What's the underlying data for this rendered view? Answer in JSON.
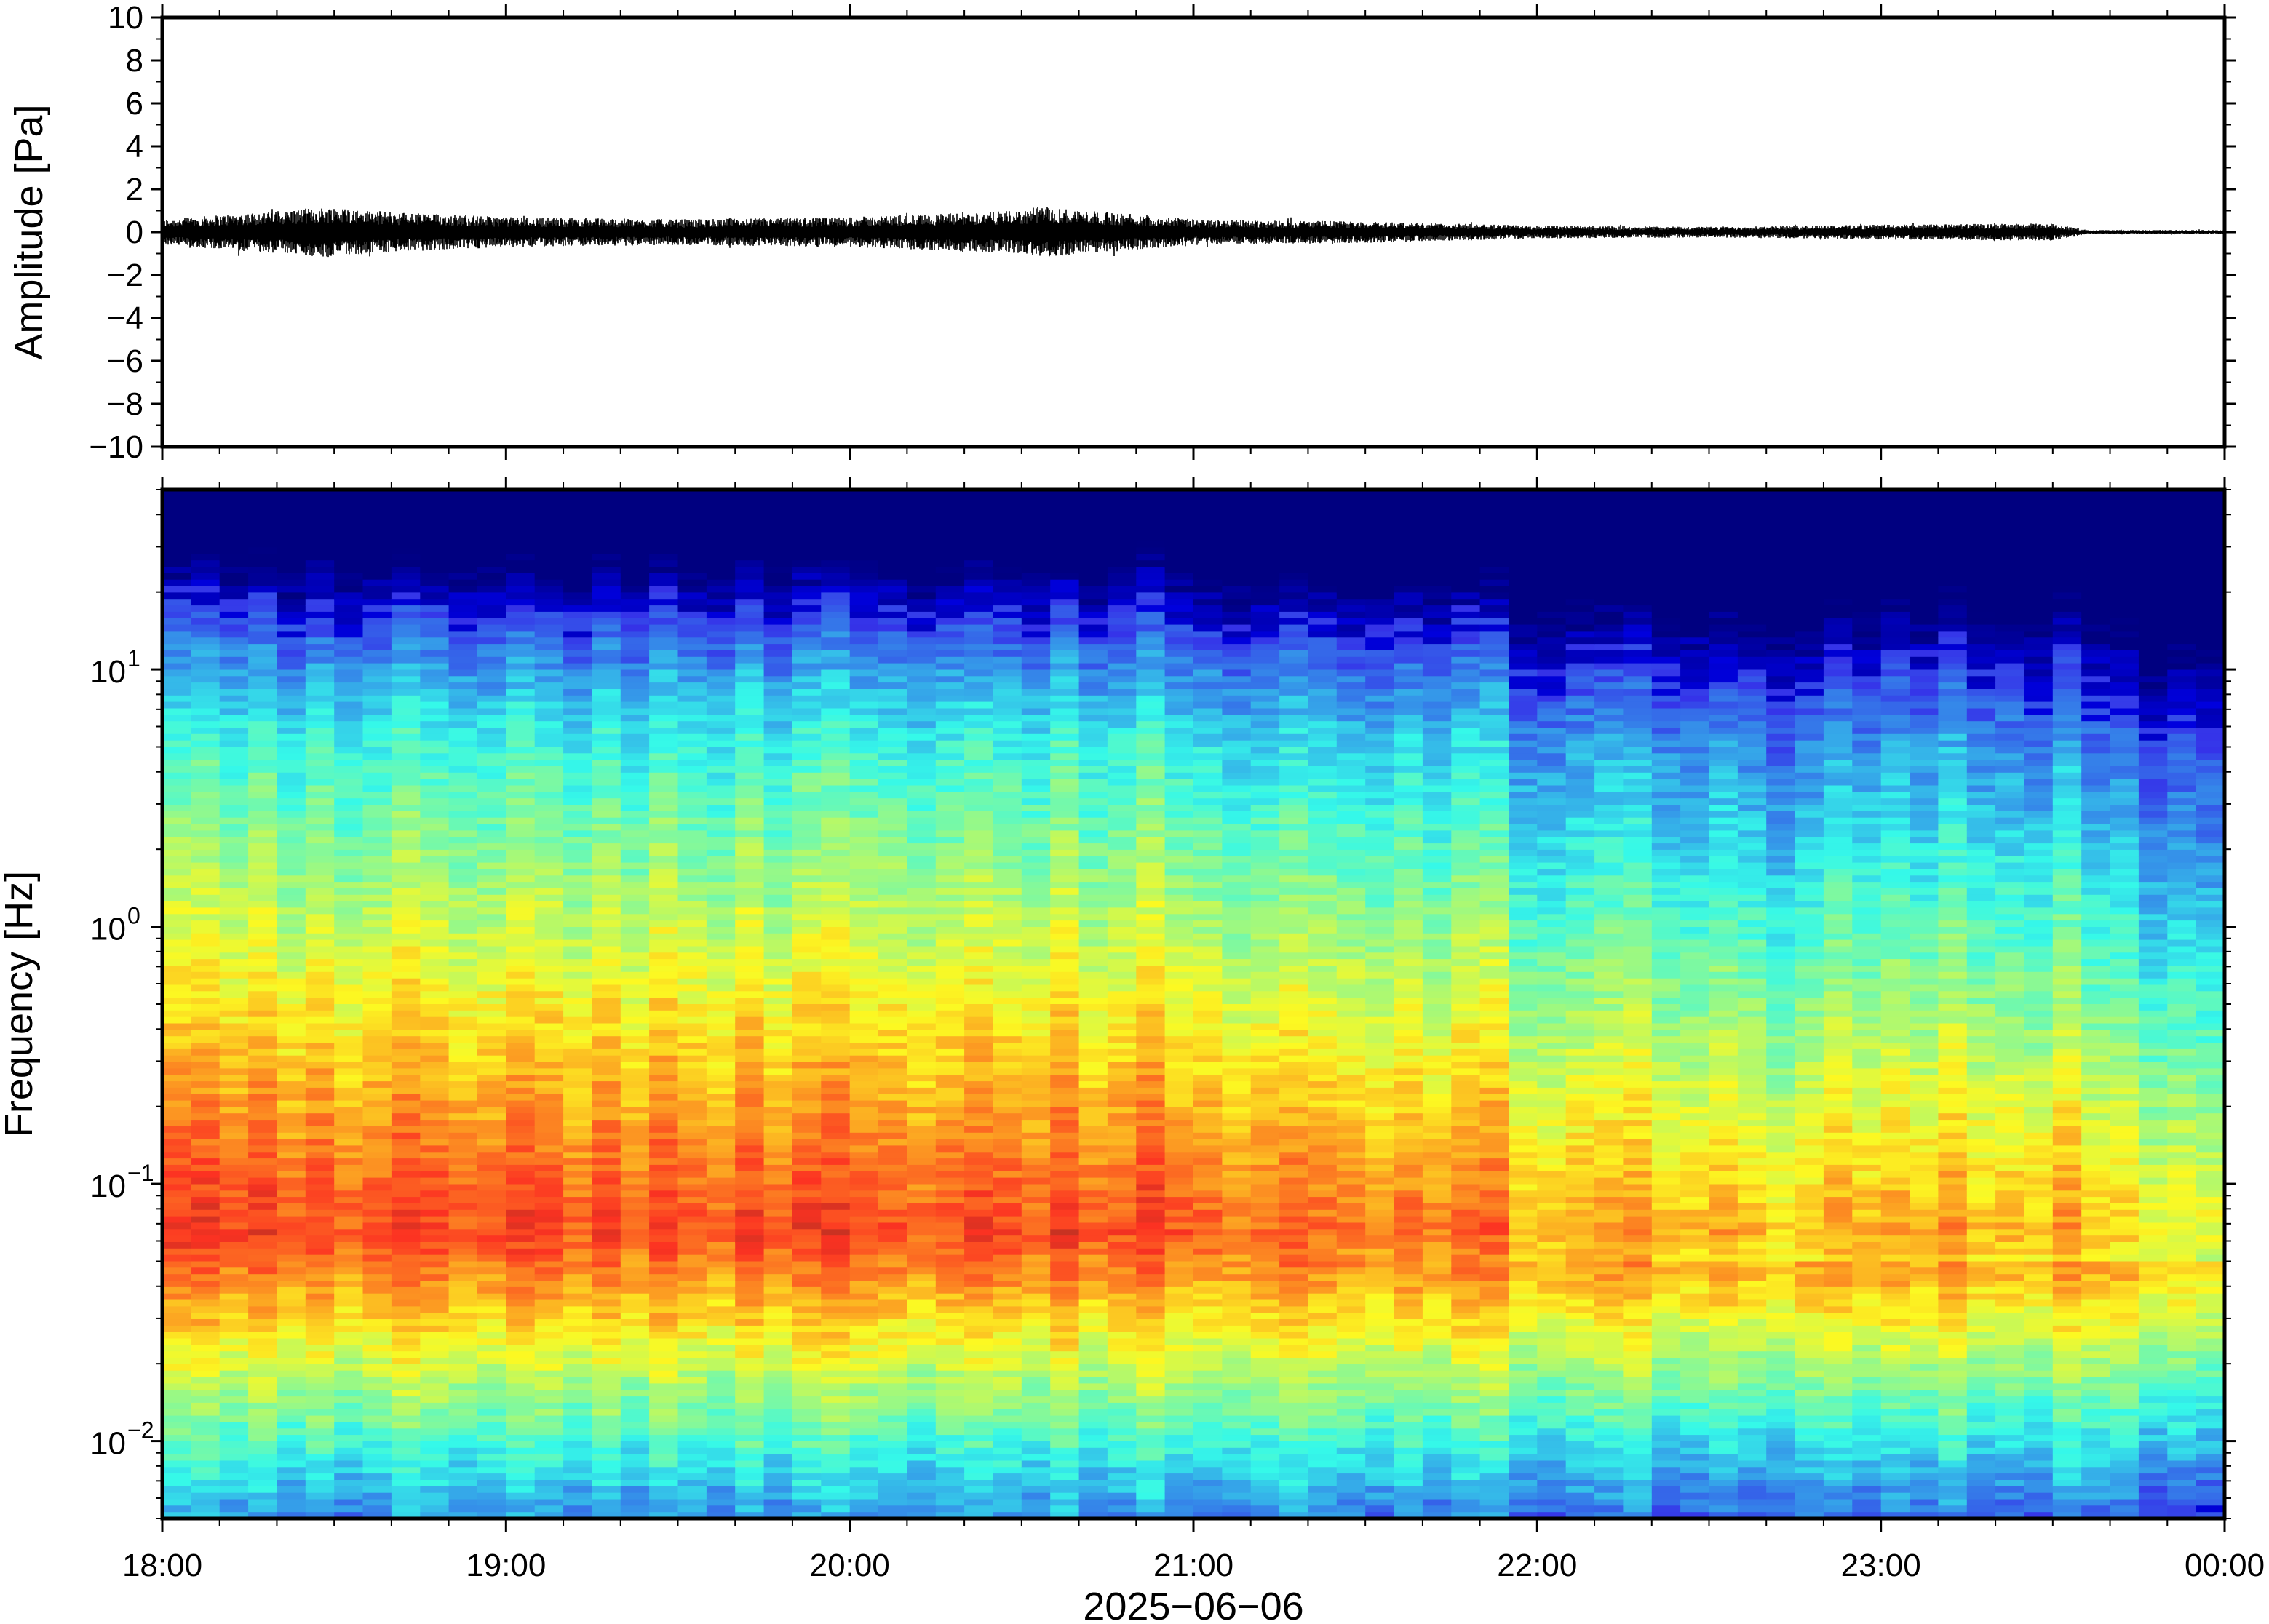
{
  "chart_data": [
    {
      "type": "line",
      "ylabel": "Amplitude [Pa]",
      "ylim": [
        -10,
        10
      ],
      "yticks": [
        -10,
        -8,
        -6,
        -4,
        -2,
        0,
        2,
        4,
        6,
        8,
        10
      ],
      "ytick_labels": [
        "−10",
        "−8",
        "−6",
        "−4",
        "−2",
        "0",
        "2",
        "4",
        "6",
        "8",
        "10"
      ],
      "xlim": [
        "18:00",
        "24:00"
      ],
      "series_color": "#000000",
      "envelope": {
        "time_hours": [
          18.0,
          18.5,
          18.6,
          19.0,
          19.5,
          20.0,
          20.5,
          20.55,
          21.0,
          21.5,
          22.0,
          22.5,
          23.0,
          23.5,
          23.6,
          24.0
        ],
        "max_abs_pa": [
          0.6,
          1.2,
          1.0,
          0.7,
          0.6,
          0.7,
          1.0,
          1.2,
          0.6,
          0.5,
          0.3,
          0.25,
          0.35,
          0.4,
          0.1,
          0.1
        ]
      }
    },
    {
      "type": "heatmap",
      "ylabel": "Frequency [Hz]",
      "yscale": "log",
      "ylim": [
        0.005,
        50
      ],
      "yticks": [
        0.01,
        0.1,
        1,
        10
      ],
      "ytick_labels": [
        {
          "base": "10",
          "exp": "−2"
        },
        {
          "base": "10",
          "exp": "−1"
        },
        {
          "base": "10",
          "exp": "0"
        },
        {
          "base": "10",
          "exp": "1"
        }
      ],
      "xlabel": "2025−06−06",
      "xlim": [
        "18:00",
        "24:00"
      ],
      "xticks": [
        18,
        19,
        20,
        21,
        22,
        23,
        24
      ],
      "xtick_labels": [
        "18:00",
        "19:00",
        "20:00",
        "21:00",
        "22:00",
        "23:00",
        "00:00"
      ],
      "colormap": "jet",
      "colors": {
        "low": "#000080",
        "mid": "#d8f57e",
        "high": "#e84a3c"
      }
    }
  ]
}
